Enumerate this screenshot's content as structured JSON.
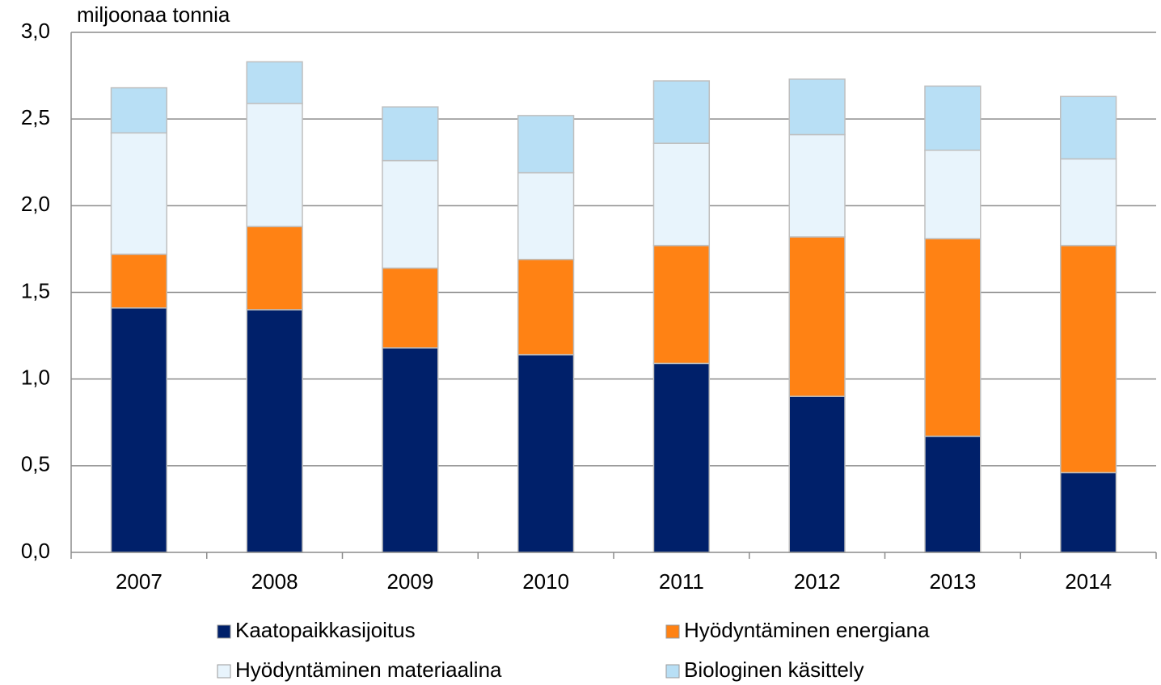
{
  "chart_data": {
    "type": "stacked_bar",
    "y_axis_label": "miljoonaa tonnia",
    "categories": [
      "2007",
      "2008",
      "2009",
      "2010",
      "2011",
      "2012",
      "2013",
      "2014"
    ],
    "series": [
      {
        "name": "Kaatopaikkasijoitus",
        "color": "#00206a",
        "values": [
          1.41,
          1.4,
          1.18,
          1.14,
          1.09,
          0.9,
          0.67,
          0.46
        ]
      },
      {
        "name": "Hyödyntäminen energiana",
        "color": "#ff8214",
        "values": [
          0.31,
          0.48,
          0.46,
          0.55,
          0.68,
          0.92,
          1.14,
          1.31
        ]
      },
      {
        "name": "Hyödyntäminen materiaalina",
        "color": "#e8f4fc",
        "values": [
          0.7,
          0.71,
          0.62,
          0.5,
          0.59,
          0.59,
          0.51,
          0.5
        ]
      },
      {
        "name": "Biologinen käsittely",
        "color": "#b8dff5",
        "values": [
          0.26,
          0.24,
          0.31,
          0.33,
          0.36,
          0.32,
          0.37,
          0.36
        ]
      }
    ],
    "ylim": [
      0,
      3
    ],
    "yticks": [
      {
        "value": 0,
        "label": "0,0"
      },
      {
        "value": 0.5,
        "label": "0,5"
      },
      {
        "value": 1,
        "label": "1,0"
      },
      {
        "value": 1.5,
        "label": "1,5"
      },
      {
        "value": 2,
        "label": "2,0"
      },
      {
        "value": 2.5,
        "label": "2,5"
      },
      {
        "value": 3,
        "label": "3,0"
      }
    ],
    "grid": true
  }
}
